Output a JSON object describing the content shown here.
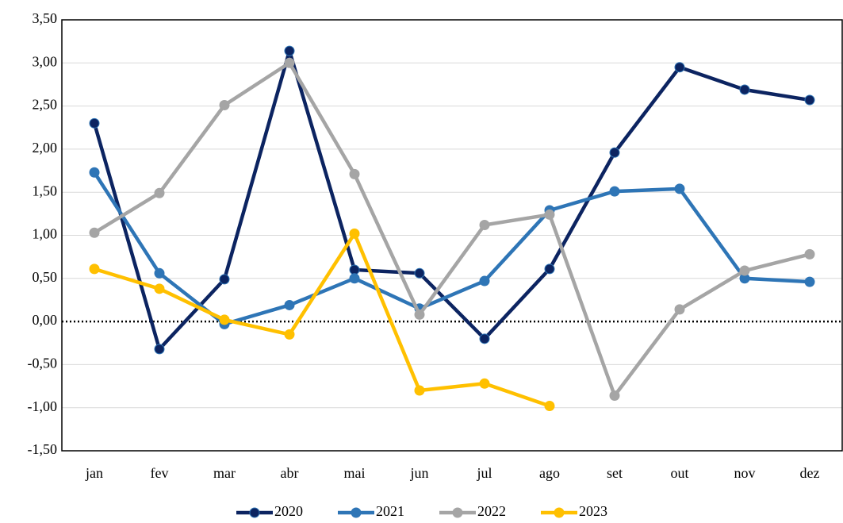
{
  "chart_data": {
    "type": "line",
    "categories": [
      "jan",
      "fev",
      "mar",
      "abr",
      "mai",
      "jun",
      "jul",
      "ago",
      "set",
      "out",
      "nov",
      "dez"
    ],
    "series": [
      {
        "name": "2020",
        "color": "#0c2461",
        "values": [
          2.3,
          -0.32,
          0.49,
          3.14,
          0.6,
          0.56,
          -0.2,
          0.61,
          1.96,
          2.95,
          2.69,
          2.57
        ]
      },
      {
        "name": "2021",
        "color": "#2e75b6",
        "values": [
          1.73,
          0.56,
          -0.03,
          0.19,
          0.5,
          0.15,
          0.47,
          1.29,
          1.51,
          1.54,
          0.5,
          0.46
        ]
      },
      {
        "name": "2022",
        "color": "#a5a5a5",
        "values": [
          1.03,
          1.49,
          2.51,
          3.0,
          1.71,
          0.08,
          1.12,
          1.24,
          -0.86,
          0.14,
          0.59,
          0.78
        ]
      },
      {
        "name": "2023",
        "color": "#ffc000",
        "values": [
          0.61,
          0.38,
          0.02,
          -0.15,
          1.02,
          -0.8,
          -0.72,
          -0.98,
          null,
          null,
          null,
          null
        ]
      }
    ],
    "ylim": [
      -1.5,
      3.5
    ],
    "yticks": [
      {
        "value": -1.5,
        "label": "-1,50"
      },
      {
        "value": -1,
        "label": "-1,00"
      },
      {
        "value": -0.5,
        "label": "-0,50"
      },
      {
        "value": 0,
        "label": "0,00"
      },
      {
        "value": 0.5,
        "label": "0,50"
      },
      {
        "value": 1,
        "label": "1,00"
      },
      {
        "value": 1.5,
        "label": "1,50"
      },
      {
        "value": 2,
        "label": "2,00"
      },
      {
        "value": 2.5,
        "label": "2,50"
      },
      {
        "value": 3,
        "label": "3,00"
      },
      {
        "value": 3.5,
        "label": "3,50"
      }
    ],
    "grid": true,
    "legend": "bottom"
  }
}
